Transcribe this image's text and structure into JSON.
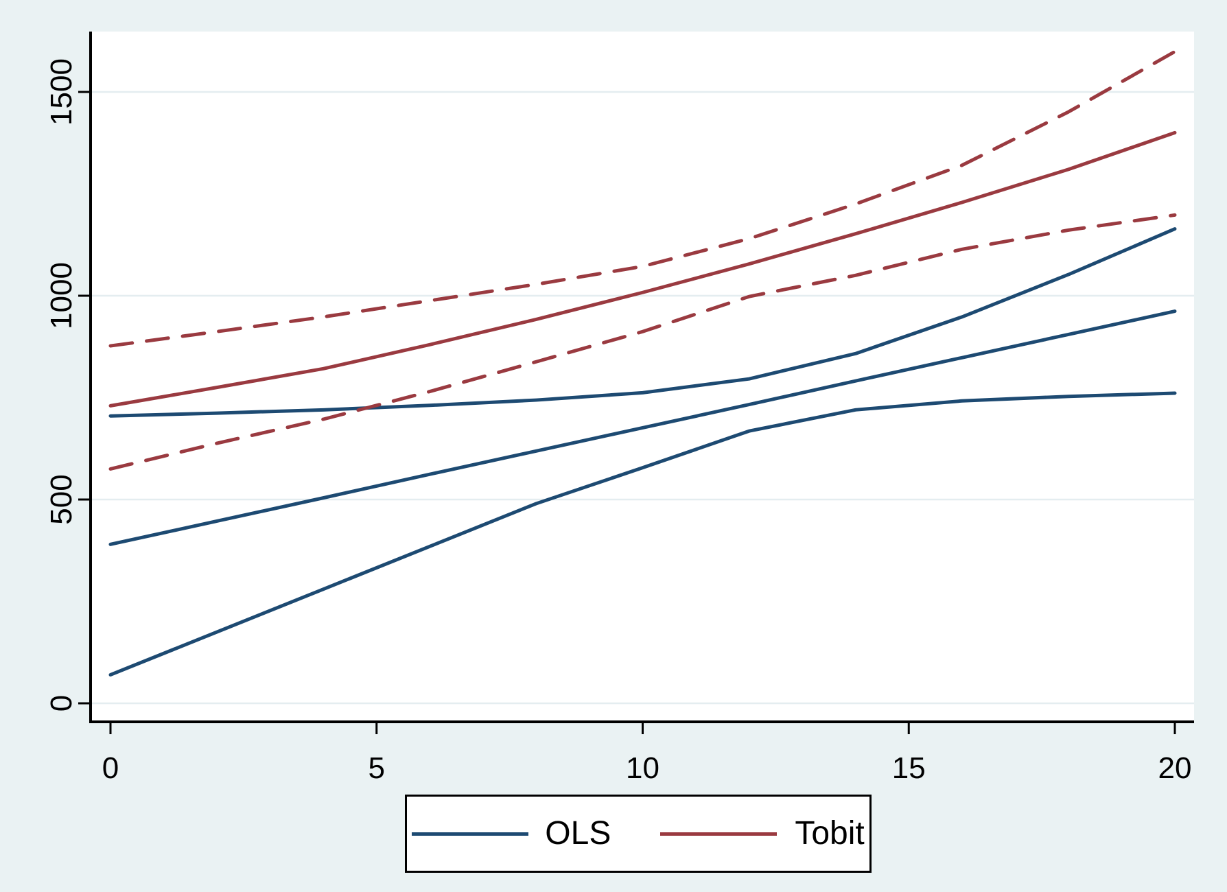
{
  "chart_data": {
    "type": "line",
    "title": "",
    "xlabel": "",
    "ylabel": "",
    "x": [
      0,
      2,
      4,
      6,
      8,
      10,
      12,
      14,
      16,
      18,
      20
    ],
    "x_ticks": [
      0,
      5,
      10,
      15,
      20
    ],
    "y_ticks": [
      0,
      500,
      1000,
      1500
    ],
    "xlim": [
      -0.4,
      20.4
    ],
    "ylim": [
      -45,
      1650
    ],
    "grid": "horizontal",
    "series": [
      {
        "name": "ols-upper-line",
        "group": "OLS",
        "style": "solid",
        "color": "#1d4a72",
        "values": [
          705,
          712,
          720,
          731,
          744,
          762,
          796,
          858,
          948,
          1052,
          1164
        ]
      },
      {
        "name": "ols-middle-line",
        "group": "OLS",
        "style": "solid",
        "color": "#1d4a72",
        "values": [
          390,
          447,
          504,
          562,
          619,
          676,
          733,
          791,
          848,
          905,
          962
        ]
      },
      {
        "name": "ols-lower-line",
        "group": "OLS",
        "style": "solid",
        "color": "#1d4a72",
        "values": [
          70,
          175,
          280,
          385,
          490,
          578,
          668,
          720,
          742,
          753,
          761
        ]
      },
      {
        "name": "tobit-fit-line",
        "group": "Tobit",
        "style": "solid",
        "color": "#9a3a40",
        "values": [
          730,
          775,
          821,
          880,
          942,
          1008,
          1078,
          1152,
          1229,
          1310,
          1400
        ]
      },
      {
        "name": "tobit-upper-dashed-line",
        "group": "Tobit",
        "style": "dashed",
        "color": "#9a3a40",
        "values": [
          877,
          912,
          948,
          988,
          1028,
          1072,
          1140,
          1225,
          1320,
          1451,
          1599
        ]
      },
      {
        "name": "tobit-lower-dashed-line",
        "group": "Tobit",
        "style": "dashed",
        "color": "#9a3a40",
        "values": [
          575,
          638,
          697,
          765,
          838,
          912,
          998,
          1050,
          1114,
          1161,
          1198
        ]
      }
    ],
    "legend": {
      "position": "bottom-center",
      "entries": [
        {
          "label": "OLS",
          "color": "#1d4a72"
        },
        {
          "label": "Tobit",
          "color": "#9a3a40"
        }
      ]
    },
    "colors": {
      "background": "#eaf2f3",
      "plot_background": "#ffffff",
      "gridline": "#e4edf0",
      "axis": "#000000",
      "tick_label": "#000000"
    }
  }
}
